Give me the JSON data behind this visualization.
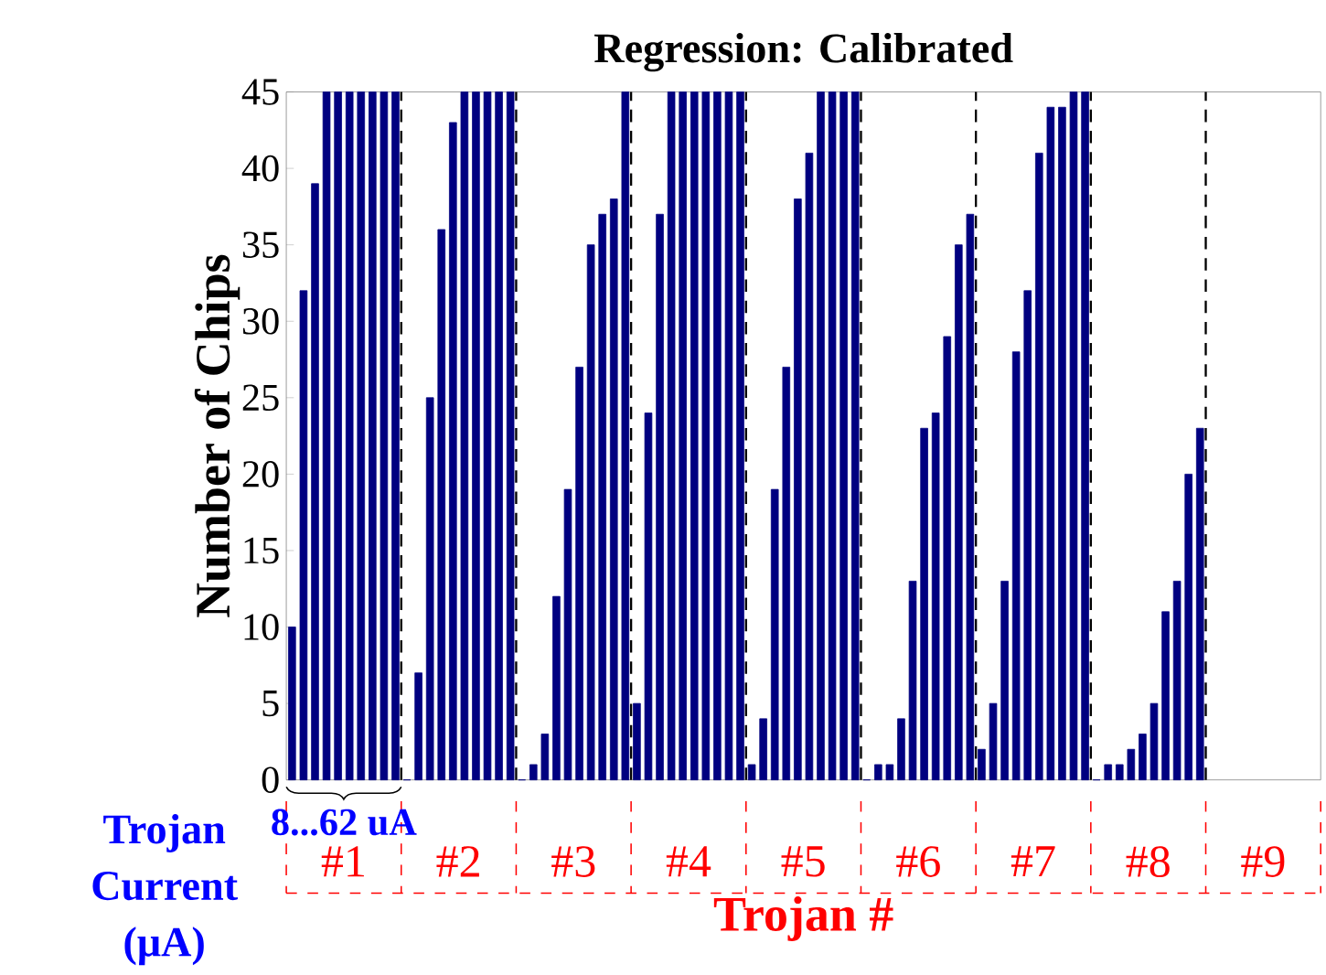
{
  "chart_data": {
    "type": "bar",
    "title": "Regression: Calibrated",
    "xlabel": "Trojan #",
    "ylabel": "Number of Chips",
    "categories": [
      "#1",
      "#2",
      "#3",
      "#4",
      "#5",
      "#6",
      "#7",
      "#8",
      "#9"
    ],
    "series": [
      {
        "color": "#000080",
        "values": [
          10,
          0,
          0,
          5,
          1,
          0,
          2,
          0,
          null
        ]
      },
      {
        "color": "#000080",
        "values": [
          32,
          7,
          1,
          24,
          4,
          1,
          5,
          1,
          null
        ]
      },
      {
        "color": "#000080",
        "values": [
          39,
          25,
          3,
          37,
          19,
          1,
          13,
          1,
          null
        ]
      },
      {
        "color": "#000080",
        "values": [
          45,
          36,
          12,
          45,
          27,
          4,
          28,
          2,
          null
        ]
      },
      {
        "color": "#000080",
        "values": [
          45,
          43,
          19,
          45,
          38,
          13,
          32,
          3,
          null
        ]
      },
      {
        "color": "#000080",
        "values": [
          45,
          45,
          27,
          45,
          41,
          23,
          41,
          5,
          null
        ]
      },
      {
        "color": "#000080",
        "values": [
          45,
          45,
          35,
          45,
          45,
          24,
          44,
          11,
          null
        ]
      },
      {
        "color": "#000080",
        "values": [
          45,
          45,
          37,
          45,
          45,
          29,
          44,
          13,
          null
        ]
      },
      {
        "color": "#000080",
        "values": [
          45,
          45,
          38,
          45,
          45,
          35,
          45,
          20,
          null
        ]
      },
      {
        "color": "#000080",
        "values": [
          45,
          45,
          45,
          45,
          45,
          37,
          45,
          23,
          null
        ]
      }
    ],
    "ylim": [
      0,
      45
    ],
    "yticks": [
      0,
      5,
      10,
      15,
      20,
      25,
      30,
      35,
      40,
      45
    ],
    "annotations": [
      "Trojan Current (μA)",
      "8...62 uA"
    ]
  }
}
